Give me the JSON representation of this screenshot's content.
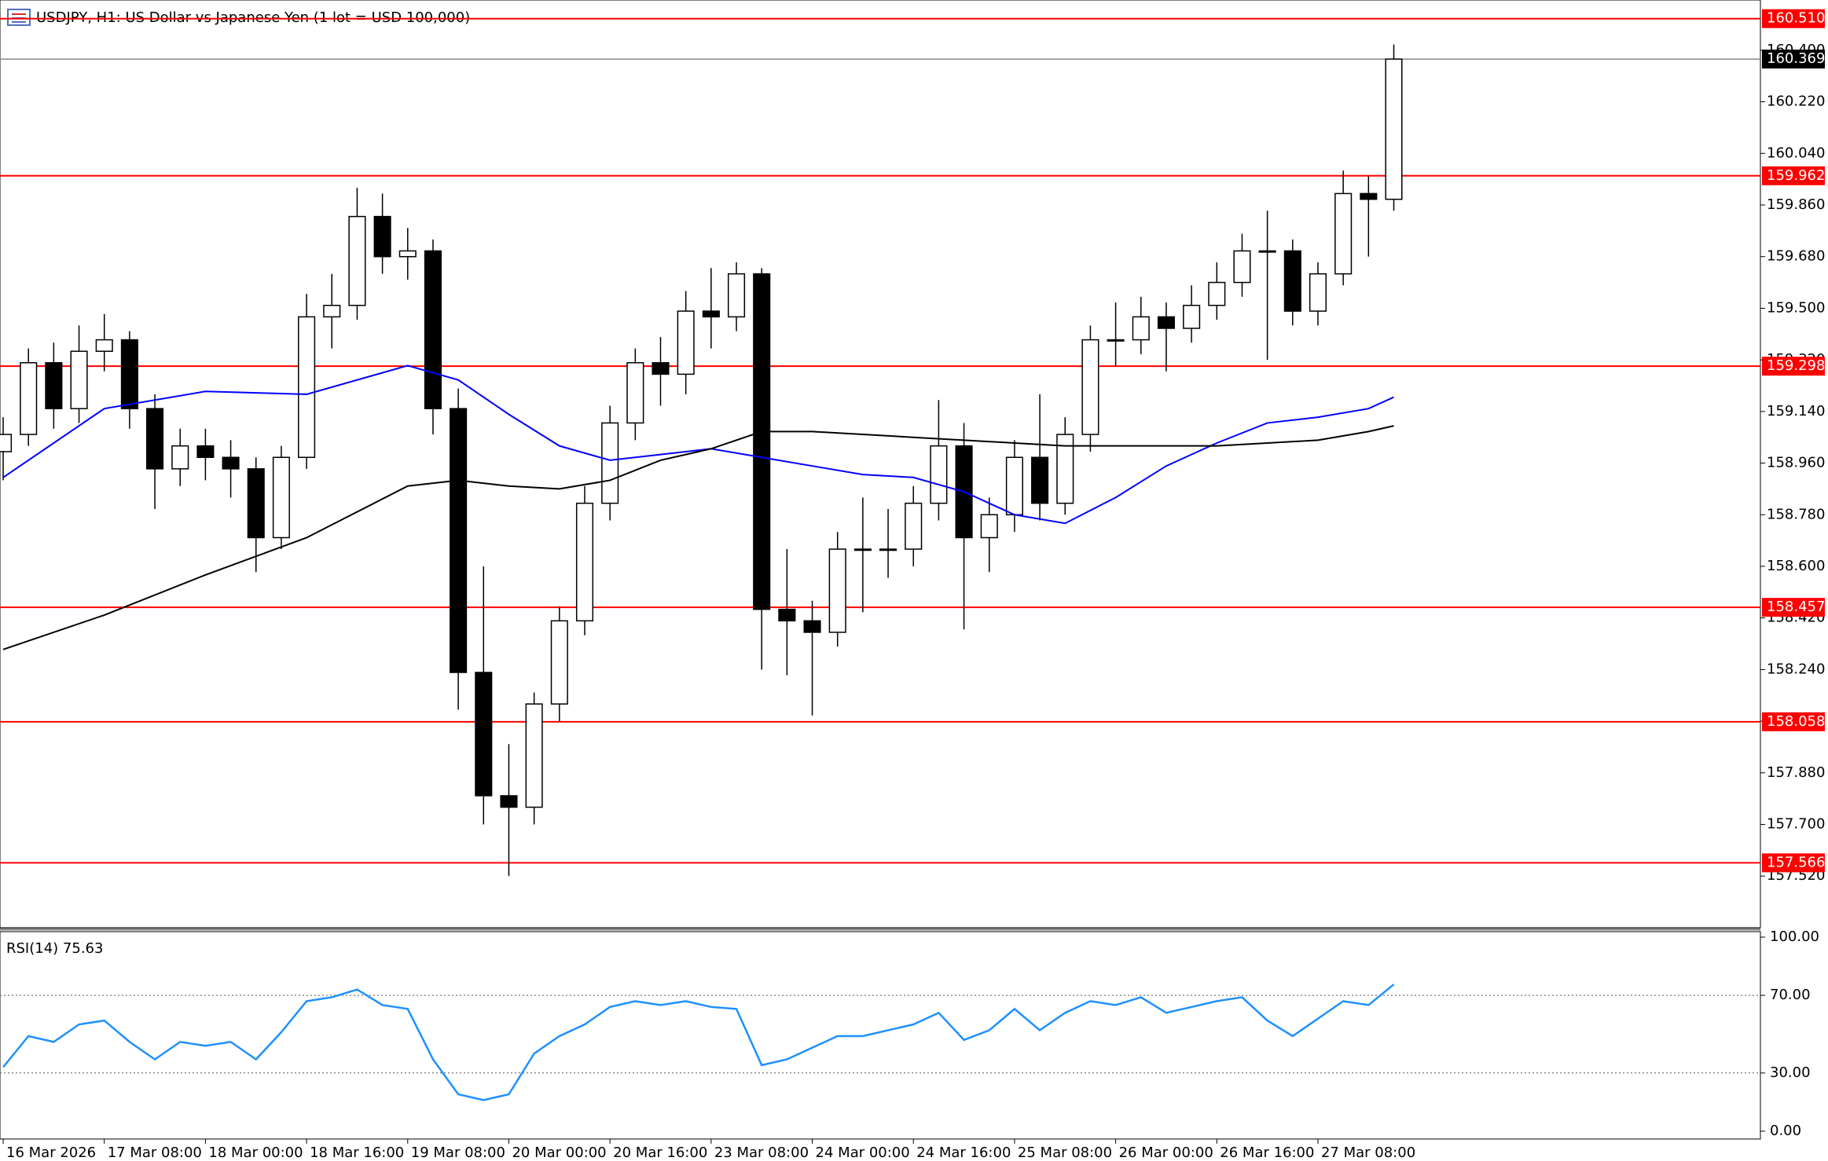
{
  "chart_data": {
    "type": "candlestick",
    "title": "USDJPY, H1:  US Dollar vs Japanese Yen (1 lot = USD 100,000)",
    "x": [
      0,
      4,
      8,
      12,
      16,
      20,
      24,
      28,
      32,
      36,
      40,
      44,
      48,
      52,
      56,
      60,
      64,
      68,
      72,
      76,
      80,
      84,
      88,
      92,
      96,
      100,
      104,
      108,
      112,
      116,
      120,
      124,
      128,
      132,
      136,
      140,
      144,
      148,
      152,
      156,
      160,
      164,
      168,
      172,
      176,
      180,
      184,
      188,
      192,
      196,
      200,
      204,
      208,
      212,
      216,
      220
    ],
    "open": [
      159.0,
      159.06,
      159.31,
      159.15,
      159.35,
      159.39,
      159.15,
      158.94,
      159.02,
      158.98,
      158.94,
      158.7,
      158.98,
      159.47,
      159.51,
      159.82,
      159.68,
      159.7,
      159.15,
      158.23,
      157.8,
      157.76,
      158.12,
      158.41,
      158.82,
      159.1,
      159.31,
      159.27,
      159.49,
      159.47,
      159.62,
      158.45,
      158.41,
      158.37,
      158.66,
      158.66,
      158.66,
      158.82,
      159.02,
      158.7,
      158.78,
      158.98,
      158.82,
      159.06,
      159.39,
      159.39,
      159.47,
      159.43,
      159.51,
      159.59,
      159.7,
      159.7,
      159.49,
      159.62,
      159.9,
      159.88
    ],
    "high": [
      159.12,
      159.36,
      159.38,
      159.44,
      159.48,
      159.42,
      159.2,
      159.08,
      159.08,
      159.04,
      158.98,
      159.02,
      159.55,
      159.62,
      159.92,
      159.9,
      159.78,
      159.74,
      159.22,
      158.6,
      157.98,
      158.16,
      158.46,
      158.88,
      159.16,
      159.36,
      159.4,
      159.56,
      159.64,
      159.66,
      159.64,
      158.66,
      158.48,
      158.72,
      158.84,
      158.8,
      158.88,
      159.18,
      159.1,
      158.84,
      159.04,
      159.2,
      159.12,
      159.44,
      159.52,
      159.54,
      159.52,
      159.58,
      159.66,
      159.76,
      159.84,
      159.74,
      159.66,
      159.98,
      159.96,
      160.42
    ],
    "low": [
      158.9,
      159.02,
      159.08,
      159.1,
      159.28,
      159.08,
      158.8,
      158.88,
      158.9,
      158.84,
      158.58,
      158.66,
      158.94,
      159.36,
      159.46,
      159.62,
      159.6,
      159.06,
      158.1,
      157.7,
      157.52,
      157.7,
      158.06,
      158.36,
      158.76,
      159.04,
      159.16,
      159.2,
      159.36,
      159.42,
      158.24,
      158.22,
      158.08,
      158.32,
      158.44,
      158.56,
      158.6,
      158.76,
      158.38,
      158.58,
      158.72,
      158.76,
      158.78,
      159.0,
      159.3,
      159.34,
      159.28,
      159.38,
      159.46,
      159.54,
      159.32,
      159.44,
      159.44,
      159.58,
      159.68,
      159.84
    ],
    "close": [
      159.06,
      159.31,
      159.15,
      159.35,
      159.39,
      159.15,
      158.94,
      159.02,
      158.98,
      158.94,
      158.7,
      158.98,
      159.47,
      159.51,
      159.82,
      159.68,
      159.7,
      159.15,
      158.23,
      157.8,
      157.76,
      158.12,
      158.41,
      158.82,
      159.1,
      159.31,
      159.27,
      159.49,
      159.47,
      159.62,
      158.45,
      158.41,
      158.37,
      158.66,
      158.66,
      158.66,
      158.82,
      159.02,
      158.7,
      158.78,
      158.98,
      158.82,
      159.06,
      159.39,
      159.39,
      159.47,
      159.43,
      159.51,
      159.59,
      159.7,
      159.7,
      159.49,
      159.62,
      159.9,
      159.88,
      160.369
    ],
    "color_up": "#ffffff",
    "color_down": "#000000",
    "xlim": [
      -0.5,
      278
    ],
    "ylim": [
      157.348,
      160.575
    ],
    "yticks": [
      {
        "value": 157.52,
        "label": "157.520"
      },
      {
        "value": 157.7,
        "label": "157.700"
      },
      {
        "value": 157.88,
        "label": "157.880"
      },
      {
        "value": 158.06,
        "label": "158.060"
      },
      {
        "value": 158.24,
        "label": "158.240"
      },
      {
        "value": 158.42,
        "label": "158.420"
      },
      {
        "value": 158.6,
        "label": "158.600"
      },
      {
        "value": 158.78,
        "label": "158.780"
      },
      {
        "value": 158.96,
        "label": "158.960"
      },
      {
        "value": 159.14,
        "label": "159.140"
      },
      {
        "value": 159.32,
        "label": "159.320"
      },
      {
        "value": 159.5,
        "label": "159.500"
      },
      {
        "value": 159.68,
        "label": "159.680"
      },
      {
        "value": 159.86,
        "label": "159.860"
      },
      {
        "value": 160.04,
        "label": "160.040"
      },
      {
        "value": 160.22,
        "label": "160.220"
      },
      {
        "value": 160.4,
        "label": "160.400"
      }
    ],
    "xticks": [
      {
        "value": 0,
        "label": "16 Mar 2026"
      },
      {
        "value": 16,
        "label": "17 Mar 08:00"
      },
      {
        "value": 32,
        "label": "18 Mar 00:00"
      },
      {
        "value": 48,
        "label": "18 Mar 16:00"
      },
      {
        "value": 64,
        "label": "19 Mar 08:00"
      },
      {
        "value": 80,
        "label": "20 Mar 00:00"
      },
      {
        "value": 96,
        "label": "20 Mar 16:00"
      },
      {
        "value": 112,
        "label": "23 Mar 08:00"
      },
      {
        "value": 128,
        "label": "24 Mar 00:00"
      },
      {
        "value": 144,
        "label": "24 Mar 16:00"
      },
      {
        "value": 160,
        "label": "25 Mar 08:00"
      },
      {
        "value": 176,
        "label": "26 Mar 00:00"
      },
      {
        "value": 192,
        "label": "26 Mar 16:00"
      },
      {
        "value": 208,
        "label": "27 Mar 08:00"
      }
    ],
    "lines": [
      {
        "color": "#0000ff",
        "x": [
          0,
          16,
          32,
          48,
          64,
          72,
          80,
          88,
          96,
          104,
          112,
          120,
          128,
          136,
          144,
          152,
          160,
          168,
          176,
          184,
          192,
          200,
          208,
          216,
          220
        ],
        "values": [
          158.91,
          159.15,
          159.21,
          159.2,
          159.3,
          159.25,
          159.13,
          159.02,
          158.97,
          158.99,
          159.01,
          158.98,
          158.95,
          158.92,
          158.91,
          158.86,
          158.78,
          158.75,
          158.84,
          158.95,
          159.03,
          159.1,
          159.12,
          159.15,
          159.19
        ]
      },
      {
        "color": "#000000",
        "x": [
          0,
          16,
          32,
          48,
          64,
          72,
          80,
          88,
          96,
          104,
          112,
          120,
          128,
          136,
          144,
          152,
          160,
          168,
          176,
          184,
          192,
          200,
          208,
          216,
          220
        ],
        "values": [
          158.31,
          158.43,
          158.57,
          158.7,
          158.88,
          158.9,
          158.88,
          158.87,
          158.9,
          158.97,
          159.01,
          159.07,
          159.07,
          159.06,
          159.05,
          159.04,
          159.03,
          159.02,
          159.02,
          159.02,
          159.02,
          159.03,
          159.04,
          159.07,
          159.09
        ]
      }
    ],
    "levels": [
      {
        "value": 160.51,
        "label": "160.510",
        "color": "#ff0000"
      },
      {
        "value": 159.962,
        "label": "159.962",
        "color": "#ff0000"
      },
      {
        "value": 159.298,
        "label": "159.298",
        "color": "#ff0000"
      },
      {
        "value": 158.457,
        "label": "158.457",
        "color": "#ff0000"
      },
      {
        "value": 158.058,
        "label": "158.058",
        "color": "#ff0000"
      },
      {
        "value": 157.566,
        "label": "157.566",
        "color": "#ff0000"
      }
    ],
    "current_price": {
      "value": 160.369,
      "label": "160.369",
      "color": "#000000"
    },
    "rsi": {
      "title": "RSI(14) 75.63",
      "color": "#1e90ff",
      "ylim": [
        0,
        100
      ],
      "yticks": [
        {
          "value": 0,
          "label": "0.00"
        },
        {
          "value": 30,
          "label": "30.00"
        },
        {
          "value": 70,
          "label": "70.00"
        },
        {
          "value": 100,
          "label": "100.00"
        }
      ],
      "levels": [
        30,
        70
      ],
      "x": [
        0,
        4,
        8,
        12,
        16,
        20,
        24,
        28,
        32,
        36,
        40,
        44,
        48,
        52,
        56,
        60,
        64,
        68,
        72,
        76,
        80,
        84,
        88,
        92,
        96,
        100,
        104,
        108,
        112,
        116,
        120,
        124,
        128,
        132,
        136,
        140,
        144,
        148,
        152,
        156,
        160,
        164,
        168,
        172,
        176,
        180,
        184,
        188,
        192,
        196,
        200,
        204,
        208,
        212,
        216,
        220
      ],
      "values": [
        33,
        49,
        46,
        55,
        57,
        46,
        37,
        46,
        44,
        46,
        37,
        51,
        67,
        69,
        73,
        65,
        63,
        37,
        19,
        16,
        19,
        40,
        49,
        55,
        64,
        67,
        65,
        67,
        64,
        63,
        34,
        37,
        43,
        49,
        49,
        52,
        55,
        61,
        47,
        52,
        63,
        52,
        61,
        67,
        65,
        69,
        61,
        64,
        67,
        69,
        57,
        49,
        58,
        67,
        65,
        75.63
      ]
    }
  }
}
